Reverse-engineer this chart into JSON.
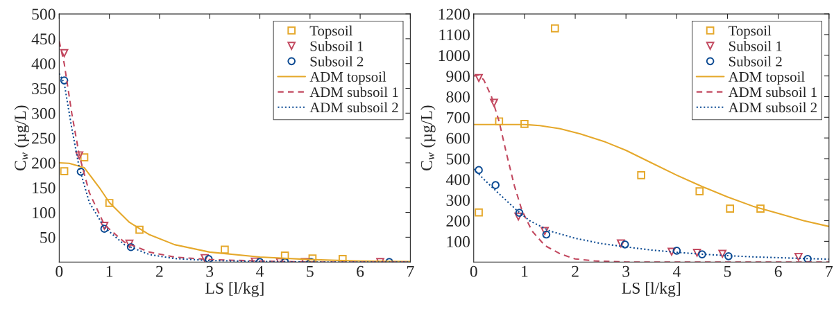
{
  "chart_data": [
    {
      "type": "scatter",
      "xlabel": "LS [l/kg]",
      "ylabel": "C$_{w}$ (µg/L)",
      "xlim": [
        0,
        7
      ],
      "ylim": [
        0,
        500
      ],
      "xticks": [
        0,
        1,
        2,
        3,
        4,
        5,
        6,
        7
      ],
      "yticks": [
        50,
        100,
        150,
        200,
        250,
        300,
        350,
        400,
        450,
        500
      ],
      "grid": false,
      "legend": "top right",
      "series": [
        {
          "name": "Topsoil",
          "marker": "square",
          "color": "#e5a82b",
          "x": [
            0.1,
            0.5,
            1.0,
            1.6,
            3.3,
            4.5,
            5.05,
            5.65
          ],
          "values": [
            183,
            211,
            119,
            65,
            25,
            13,
            7,
            6
          ]
        },
        {
          "name": "Subsoil 1",
          "marker": "triangle",
          "color": "#c2485f",
          "x": [
            0.1,
            0.4,
            0.9,
            1.4,
            2.9,
            3.9,
            4.4,
            4.9,
            6.4
          ],
          "values": [
            421,
            215,
            73,
            37,
            8,
            1,
            0,
            0,
            0
          ]
        },
        {
          "name": "Subsoil 2",
          "marker": "circle",
          "color": "#0b4a92",
          "x": [
            0.1,
            0.43,
            0.9,
            1.43,
            2.98,
            4.0,
            4.5,
            5.02,
            6.58
          ],
          "values": [
            366,
            182,
            67,
            30,
            6,
            0,
            0,
            0,
            0
          ]
        },
        {
          "name": "ADM topsoil",
          "type": "line",
          "line_style": "solid",
          "color": "#e5a82b",
          "x": [
            0,
            0.2,
            0.5,
            0.8,
            1.0,
            1.4,
            1.8,
            2.3,
            3,
            4,
            5,
            6,
            7
          ],
          "values": [
            200,
            199,
            190,
            150,
            120,
            80,
            55,
            35,
            20,
            10,
            5,
            2,
            1
          ]
        },
        {
          "name": "ADM subsoil 1",
          "type": "line",
          "line_style": "dashed",
          "color": "#c2485f",
          "x": [
            0,
            0.1,
            0.25,
            0.4,
            0.6,
            0.9,
            1.3,
            1.8,
            2.3,
            3,
            4,
            5,
            7
          ],
          "values": [
            445,
            400,
            300,
            215,
            140,
            75,
            40,
            20,
            10,
            5,
            2,
            0,
            0
          ]
        },
        {
          "name": "ADM subsoil 2",
          "type": "line",
          "line_style": "dotted",
          "color": "#0b4a92",
          "x": [
            0,
            0.1,
            0.25,
            0.4,
            0.6,
            0.9,
            1.3,
            1.8,
            2.3,
            3,
            4,
            5,
            7
          ],
          "values": [
            380,
            360,
            270,
            190,
            120,
            70,
            35,
            15,
            7,
            3,
            1,
            0,
            0
          ]
        }
      ]
    },
    {
      "type": "scatter",
      "xlabel": "LS [l/kg]",
      "ylabel": "C$_{w}$ (µg/L)",
      "xlim": [
        0,
        7
      ],
      "ylim": [
        0,
        1200
      ],
      "xticks": [
        0,
        1,
        2,
        3,
        4,
        5,
        6,
        7
      ],
      "yticks": [
        100,
        200,
        300,
        400,
        500,
        600,
        700,
        800,
        900,
        1000,
        1100,
        1200
      ],
      "grid": false,
      "legend": "top right",
      "series": [
        {
          "name": "Topsoil",
          "marker": "square",
          "color": "#e5a82b",
          "x": [
            0.1,
            0.5,
            1.0,
            1.6,
            3.3,
            4.45,
            5.05,
            5.65
          ],
          "values": [
            240,
            680,
            668,
            1130,
            420,
            342,
            258,
            258
          ]
        },
        {
          "name": "Subsoil 1",
          "marker": "triangle",
          "color": "#c2485f",
          "x": [
            0.1,
            0.4,
            0.88,
            1.4,
            2.9,
            3.9,
            4.4,
            4.9,
            6.4
          ],
          "values": [
            890,
            770,
            220,
            150,
            90,
            50,
            45,
            40,
            25
          ]
        },
        {
          "name": "Subsoil 2",
          "marker": "circle",
          "color": "#0b4a92",
          "x": [
            0.1,
            0.43,
            0.9,
            1.43,
            2.98,
            4.0,
            4.5,
            5.02,
            6.58
          ],
          "values": [
            445,
            372,
            238,
            133,
            85,
            55,
            37,
            28,
            15
          ]
        },
        {
          "name": "ADM topsoil",
          "type": "line",
          "line_style": "solid",
          "color": "#e5a82b",
          "x": [
            0,
            1,
            1.3,
            1.7,
            2.1,
            2.6,
            3,
            3.5,
            4,
            4.5,
            5,
            5.5,
            6,
            6.5,
            7
          ],
          "values": [
            665,
            665,
            660,
            645,
            620,
            580,
            540,
            480,
            420,
            365,
            315,
            270,
            235,
            200,
            172
          ]
        },
        {
          "name": "ADM subsoil 1",
          "type": "line",
          "line_style": "dashed",
          "color": "#c2485f",
          "x": [
            0,
            0.1,
            0.2,
            0.35,
            0.5,
            0.65,
            0.8,
            0.95,
            1.15,
            1.4,
            1.7,
            2.0,
            2.4,
            3,
            7
          ],
          "values": [
            900,
            905,
            880,
            800,
            680,
            520,
            370,
            250,
            150,
            80,
            40,
            15,
            5,
            0,
            0
          ]
        },
        {
          "name": "ADM subsoil 2",
          "type": "line",
          "line_style": "dotted",
          "color": "#0b4a92",
          "x": [
            0,
            0.2,
            0.5,
            0.85,
            1.1,
            1.5,
            2,
            2.5,
            3,
            3.5,
            4,
            4.5,
            5,
            5.5,
            6,
            6.5,
            7
          ],
          "values": [
            450,
            400,
            330,
            250,
            200,
            150,
            115,
            90,
            73,
            58,
            47,
            38,
            31,
            25,
            21,
            17,
            14
          ]
        }
      ]
    }
  ]
}
